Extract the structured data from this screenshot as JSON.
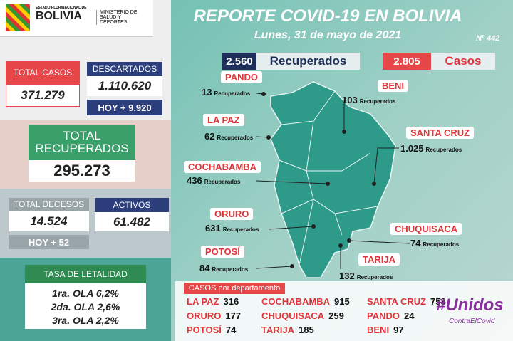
{
  "header": {
    "state": "ESTADO PLURINACIONAL DE",
    "country": "BOLIVIA",
    "ministry": "MINISTERIO DE SALUD Y DEPORTES",
    "title": "REPORTE COVID-19 EN BOLIVIA",
    "date": "Lunes, 31 de mayo de 2021",
    "number": "Nº 442"
  },
  "totals": {
    "cases": {
      "label": "TOTAL CASOS",
      "value": "371.279"
    },
    "discarded": {
      "label": "DESCARTADOS",
      "value": "1.110.620",
      "today": "HOY + 9.920"
    },
    "recovered": {
      "label": "TOTAL RECUPERADOS",
      "value": "295.273"
    },
    "deaths": {
      "label": "TOTAL DECESOS",
      "value": "14.524",
      "today": "HOY + 52"
    },
    "active": {
      "label": "ACTIVOS",
      "value": "61.482"
    }
  },
  "lethality": {
    "title": "TASA DE LETALIDAD",
    "rows": [
      "1ra. OLA 6,2%",
      "2da. OLA 2,6%",
      "3ra. OLA 2,2%"
    ]
  },
  "daily": {
    "recovered": {
      "value": "2.560",
      "label": "Recuperados"
    },
    "cases": {
      "value": "2.805",
      "label": "Casos"
    }
  },
  "departments": [
    {
      "name": "PANDO",
      "value": "13",
      "unit": "Recuperados"
    },
    {
      "name": "BENI",
      "value": "103",
      "unit": "Recuperados"
    },
    {
      "name": "LA PAZ",
      "value": "62",
      "unit": "Recuperados"
    },
    {
      "name": "SANTA CRUZ",
      "value": "1.025",
      "unit": "Recuperados"
    },
    {
      "name": "COCHABAMBA",
      "value": "436",
      "unit": "Recuperados"
    },
    {
      "name": "ORURO",
      "value": "631",
      "unit": "Recuperados"
    },
    {
      "name": "CHUQUISACA",
      "value": "74",
      "unit": "Recuperados"
    },
    {
      "name": "POTOSÍ",
      "value": "84",
      "unit": "Recuperados"
    },
    {
      "name": "TARIJA",
      "value": "132",
      "unit": "Recuperados"
    }
  ],
  "cases_table": {
    "title": "CASOS por departamento",
    "rows": [
      [
        {
          "name": "LA PAZ",
          "value": "316"
        },
        {
          "name": "COCHABAMBA",
          "value": "915"
        },
        {
          "name": "SANTA CRUZ",
          "value": "758"
        }
      ],
      [
        {
          "name": "ORURO",
          "value": "177"
        },
        {
          "name": "CHUQUISACA",
          "value": "259"
        },
        {
          "name": "PANDO",
          "value": "24"
        }
      ],
      [
        {
          "name": "POTOSÍ",
          "value": "74"
        },
        {
          "name": "TARIJA",
          "value": "185"
        },
        {
          "name": "BENI",
          "value": "97"
        }
      ]
    ]
  },
  "logo": {
    "main": "#Unidos",
    "sub": "ContraElCovid"
  }
}
